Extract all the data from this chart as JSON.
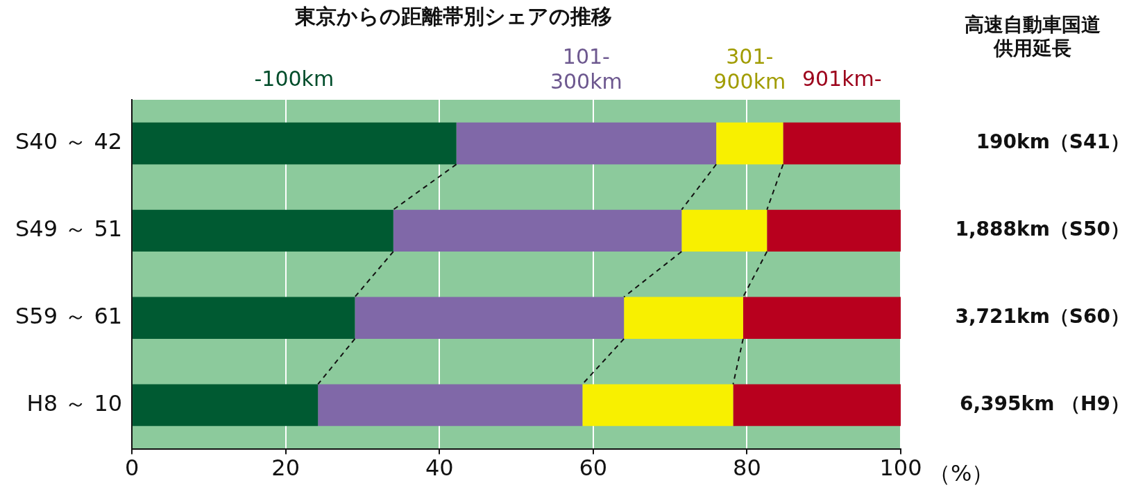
{
  "chart_data": {
    "type": "bar",
    "orientation": "horizontal",
    "stacked": true,
    "title": "東京からの距離帯別シェアの推移",
    "xlabel": "（%）",
    "legend": "top",
    "grid": "x",
    "categories": [
      "S40 ～ 42",
      "S49 ～ 51",
      "S59 ～ 61",
      "H8 ～ 10"
    ],
    "series": [
      {
        "name": "-100km",
        "color": "#005a32",
        "values": [
          42.2,
          34,
          29,
          24.2
        ]
      },
      {
        "name": "101-\n300km",
        "color": "#8068a8",
        "values": [
          33.8,
          37.5,
          35,
          34.4
        ]
      },
      {
        "name": "301-\n900km",
        "color": "#f8f000",
        "values": [
          8.7,
          11.1,
          15.5,
          19.6
        ]
      },
      {
        "name": "901km-",
        "color": "#b8001e",
        "values": [
          15.3,
          17.4,
          20.5,
          21.8
        ]
      }
    ],
    "xlim": [
      0,
      100
    ],
    "xticks": [
      0,
      20,
      40,
      60,
      80,
      100
    ],
    "annotations": [
      "高速自動車国道供用延長",
      "190km（S41）",
      "1,888km（S50）",
      "3,721km（S60）",
      "6,395km （H9）"
    ]
  }
}
